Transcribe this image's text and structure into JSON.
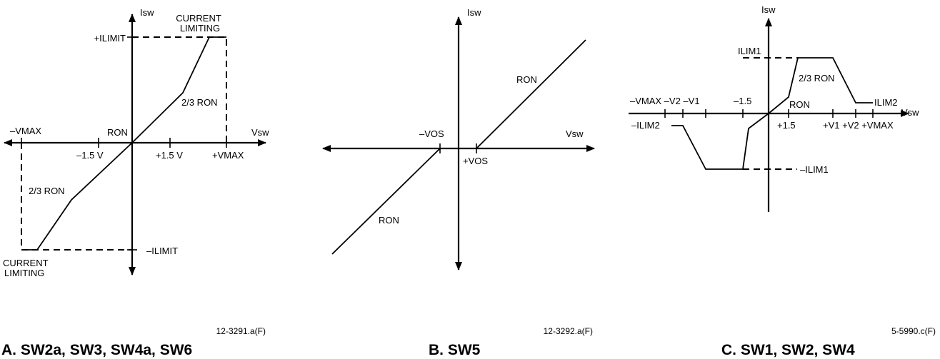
{
  "panel_a": {
    "y_axis": "Isw",
    "x_axis": "Vsw",
    "current_limiting_top": [
      "CURRENT",
      "LIMITING"
    ],
    "current_limiting_bottom": [
      "CURRENT",
      "LIMITING"
    ],
    "plus_ilimit": "+ILIMIT",
    "minus_ilimit": "–ILIMIT",
    "minus_vmax": "–VMAX",
    "plus_vmax": "+VMAX",
    "minus_1_5v": "–1.5 V",
    "plus_1_5v": "+1.5 V",
    "ron": "RON",
    "two_thirds_ron_upper": "2/3 RON",
    "two_thirds_ron_lower": "2/3 RON",
    "figure_id": "12-3291.a(F)",
    "caption": "A. SW2a, SW3, SW4a, SW6"
  },
  "panel_b": {
    "y_axis": "Isw",
    "x_axis": "Vsw",
    "ron_upper": "RON",
    "ron_lower": "RON",
    "minus_vos": "–VOS",
    "plus_vos": "+VOS",
    "figure_id": "12-3292.a(F)",
    "caption": "B. SW5"
  },
  "panel_c": {
    "y_axis": "Isw",
    "x_axis": "Vsw",
    "ilim1": "ILIM1",
    "ilim2": "ILIM2",
    "minus_ilim1": "–ILIM1",
    "minus_ilim2": "–ILIM2",
    "two_thirds_ron": "2/3 RON",
    "ron": "RON",
    "neg_ticks": "–VMAX –V2 –V1",
    "minus_1_5": "–1.5",
    "plus_1_5": "+1.5",
    "pos_ticks": "+V1 +V2 +VMAX",
    "figure_id": "5-5990.c(F)",
    "caption": "C. SW1, SW2, SW4"
  }
}
